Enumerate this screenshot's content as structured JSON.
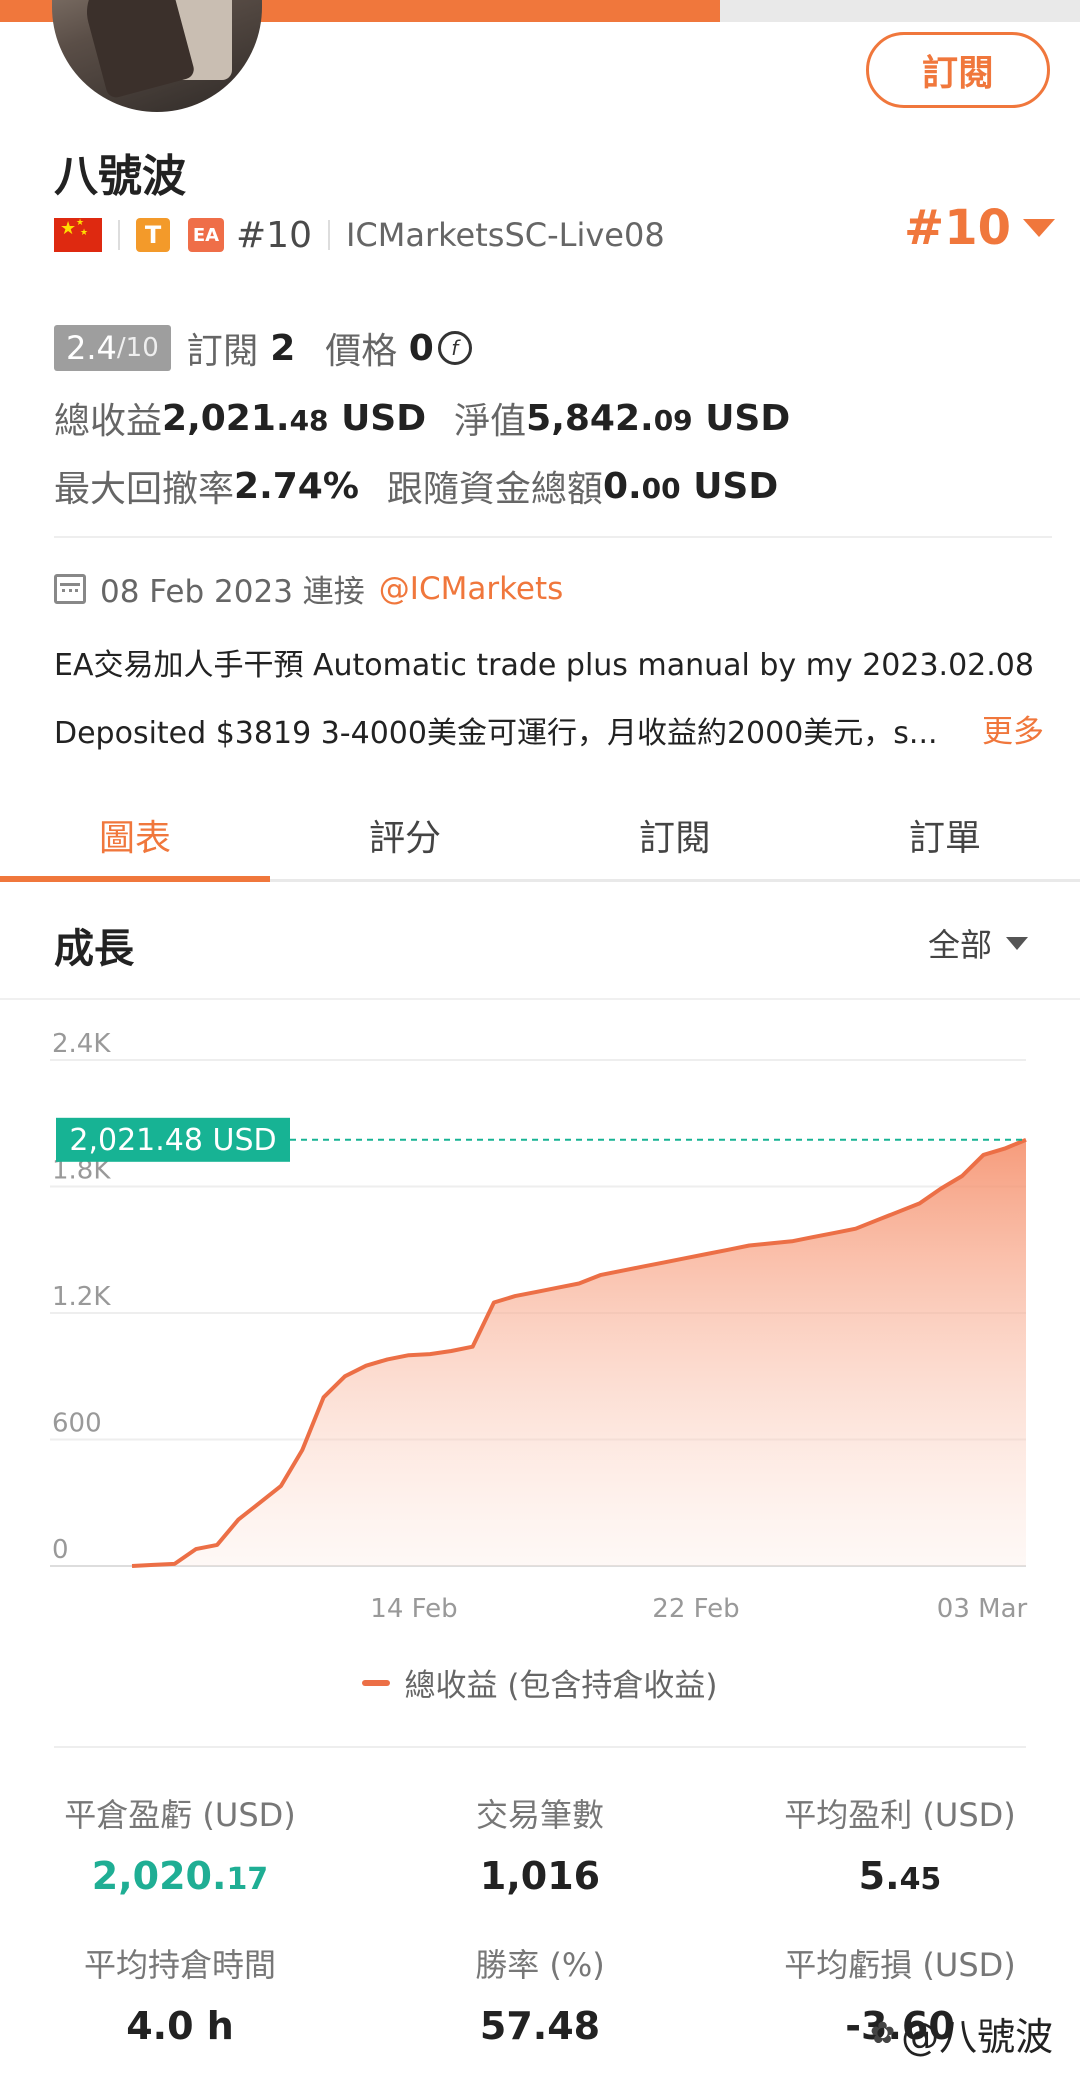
{
  "header": {
    "subscribe_label": "訂閱",
    "name": "八號波",
    "tbadge": "T",
    "eabadge": "EA",
    "rank_small": "#10",
    "broker": "ICMarketsSC-Live08",
    "rank_big": "#10"
  },
  "stats": {
    "rating_num": "2.4",
    "rating_den": "/10",
    "subs_label": "訂閱",
    "subs_value": "2",
    "price_label": "價格",
    "price_value": "0",
    "price_coin": "f",
    "total_label": "總收益",
    "total_int": "2,021.",
    "total_dec": "48",
    "total_unit": "USD",
    "equity_label": "淨值",
    "equity_int": "5,842.",
    "equity_dec": "09",
    "equity_unit": "USD",
    "drawdown_label": "最大回撤率",
    "drawdown_value": "2.74%",
    "follow_label": "跟隨資金總額",
    "follow_int": "0.",
    "follow_dec": "00",
    "follow_unit": "USD"
  },
  "info": {
    "date": "08 Feb 2023 連接",
    "link": "@ICMarkets",
    "desc_line1": "EA交易加人手干預 Automatic trade plus manual by my 2023.02.08",
    "desc_line2": "Deposited $3819 3-4000美金可運行，月收益約2000美元，s...",
    "more_label": "更多"
  },
  "tabs": [
    "圖表",
    "評分",
    "訂閱",
    "訂單"
  ],
  "section": {
    "title": "成長",
    "filter": "全部"
  },
  "chart_data": {
    "type": "area",
    "y_ticks": [
      "2.4K",
      "1.8K",
      "1.2K",
      "600",
      "0"
    ],
    "x_ticks": [
      "14 Feb",
      "22 Feb",
      "03 Mar"
    ],
    "ylim": [
      0,
      2400
    ],
    "current_label": "2,021.48 USD",
    "current_value": 2021.48,
    "legend": "總收益 (包含持倉收益)",
    "accent_color": "#ec6f46",
    "label_color": "#17b394",
    "series": [
      {
        "name": "總收益 (包含持倉收益)",
        "values": [
          0,
          5,
          10,
          80,
          100,
          220,
          300,
          380,
          550,
          800,
          900,
          950,
          980,
          1000,
          1005,
          1020,
          1040,
          1250,
          1280,
          1300,
          1320,
          1340,
          1380,
          1400,
          1420,
          1440,
          1460,
          1480,
          1500,
          1520,
          1530,
          1540,
          1560,
          1580,
          1600,
          1640,
          1680,
          1720,
          1790,
          1850,
          1950,
          1980,
          2021.48
        ]
      }
    ]
  },
  "metrics": [
    {
      "label": "平倉盈虧 (USD)",
      "int": "2,020.",
      "dec": "17",
      "green": true
    },
    {
      "label": "交易筆數",
      "int": "1,016",
      "dec": "",
      "green": false
    },
    {
      "label": "平均盈利 (USD)",
      "int": "5.",
      "dec": "45",
      "green": false
    },
    {
      "label": "平均持倉時間",
      "int": "4.0 h",
      "dec": "",
      "green": false
    },
    {
      "label": "勝率 (%)",
      "int": "57.48",
      "dec": "",
      "green": false
    },
    {
      "label": "平均虧損 (USD)",
      "int": "-3.60",
      "dec": "",
      "green": false
    }
  ],
  "watermark": "@八號波"
}
